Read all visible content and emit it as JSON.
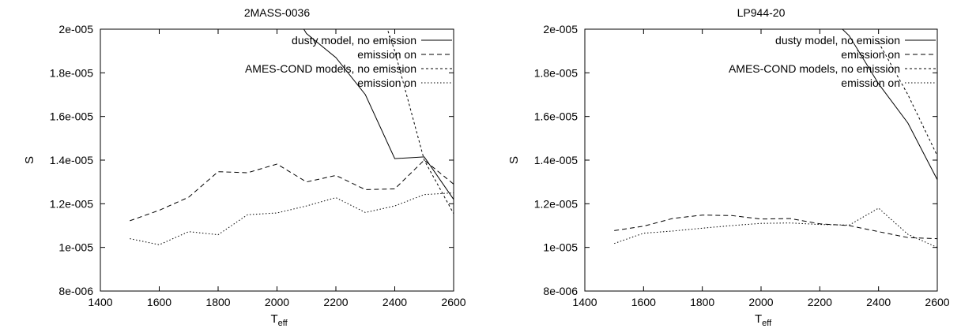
{
  "chart_data": [
    {
      "type": "line",
      "title": "2MASS-0036",
      "xlabel": "T",
      "xlabel_sub": "eff",
      "ylabel": "S",
      "xlim": [
        1400,
        2600
      ],
      "ylim": [
        8e-06,
        2e-05
      ],
      "xticks": [
        1400,
        1600,
        1800,
        2000,
        2200,
        2400,
        2600
      ],
      "xtick_labels": [
        "1400",
        "1600",
        "1800",
        "2000",
        "2200",
        "2400",
        "2600"
      ],
      "yticks": [
        8e-06,
        1e-05,
        1.2e-05,
        1.4e-05,
        1.6e-05,
        1.8e-05,
        2e-05
      ],
      "ytick_labels": [
        "8e-006",
        "1e-005",
        "1.2e-005",
        "1.4e-005",
        "1.6e-005",
        "1.8e-005",
        "2e-005"
      ],
      "legend_position": "top-right",
      "series": [
        {
          "name": "dusty model, no emission",
          "style": "solid",
          "x": [
            2000,
            2100,
            2200,
            2300,
            2400,
            2500,
            2600
          ],
          "y": [
            2.2e-05,
            1.98e-05,
            1.87e-05,
            1.7e-05,
            1.407e-05,
            1.415e-05,
            1.22e-05
          ]
        },
        {
          "name": "emission on",
          "style": "dashed",
          "x": [
            1500,
            1600,
            1700,
            1800,
            1900,
            2000,
            2100,
            2200,
            2300,
            2400,
            2500,
            2600
          ],
          "y": [
            1.122e-05,
            1.17e-05,
            1.23e-05,
            1.347e-05,
            1.342e-05,
            1.382e-05,
            1.3e-05,
            1.33e-05,
            1.265e-05,
            1.268e-05,
            1.4e-05,
            1.29e-05
          ]
        },
        {
          "name": "AMES-COND models, no emission",
          "style": "dotted-short",
          "x": [
            2300,
            2400,
            2500,
            2600
          ],
          "y": [
            2.3e-05,
            1.9e-05,
            1.4e-05,
            1.155e-05
          ]
        },
        {
          "name": "emission on",
          "style": "dotted",
          "x": [
            1500,
            1600,
            1700,
            1800,
            1900,
            2000,
            2100,
            2200,
            2300,
            2400,
            2500,
            2600
          ],
          "y": [
            1.04e-05,
            1.012e-05,
            1.072e-05,
            1.058e-05,
            1.15e-05,
            1.158e-05,
            1.19e-05,
            1.228e-05,
            1.16e-05,
            1.19e-05,
            1.242e-05,
            1.25e-05
          ]
        }
      ]
    },
    {
      "type": "line",
      "title": "LP944-20",
      "xlabel": "T",
      "xlabel_sub": "eff",
      "ylabel": "S",
      "xlim": [
        1400,
        2600
      ],
      "ylim": [
        8e-06,
        2e-05
      ],
      "xticks": [
        1400,
        1600,
        1800,
        2000,
        2200,
        2400,
        2600
      ],
      "xtick_labels": [
        "1400",
        "1600",
        "1800",
        "2000",
        "2200",
        "2400",
        "2600"
      ],
      "yticks": [
        8e-06,
        1e-05,
        1.2e-05,
        1.4e-05,
        1.6e-05,
        1.8e-05,
        2e-05
      ],
      "ytick_labels": [
        "8e-006",
        "1e-005",
        "1.2e-005",
        "1.4e-005",
        "1.6e-005",
        "1.8e-005",
        "2e-005"
      ],
      "legend_position": "top-right",
      "series": [
        {
          "name": "dusty model, no emission",
          "style": "solid",
          "x": [
            2200,
            2300,
            2400,
            2500,
            2600
          ],
          "y": [
            2.1e-05,
            1.97e-05,
            1.75e-05,
            1.57e-05,
            1.31e-05
          ]
        },
        {
          "name": "emission on",
          "style": "dashed",
          "x": [
            1500,
            1600,
            1700,
            1800,
            1900,
            2000,
            2100,
            2200,
            2300,
            2400,
            2500,
            2600
          ],
          "y": [
            1.077e-05,
            1.097e-05,
            1.133e-05,
            1.148e-05,
            1.146e-05,
            1.13e-05,
            1.132e-05,
            1.108e-05,
            1.1e-05,
            1.072e-05,
            1.045e-05,
            1.04e-05
          ]
        },
        {
          "name": "AMES-COND models, no emission",
          "style": "dotted-short",
          "x": [
            2400,
            2500,
            2600
          ],
          "y": [
            1.94e-05,
            1.7e-05,
            1.42e-05
          ]
        },
        {
          "name": "emission on",
          "style": "dotted",
          "x": [
            1500,
            1600,
            1700,
            1800,
            1900,
            2000,
            2100,
            2200,
            2300,
            2400,
            2500,
            2600
          ],
          "y": [
            1.018e-05,
            1.065e-05,
            1.075e-05,
            1.088e-05,
            1.1e-05,
            1.11e-05,
            1.112e-05,
            1.105e-05,
            1.102e-05,
            1.18e-05,
            1.06e-05,
            1e-05
          ]
        }
      ]
    }
  ]
}
